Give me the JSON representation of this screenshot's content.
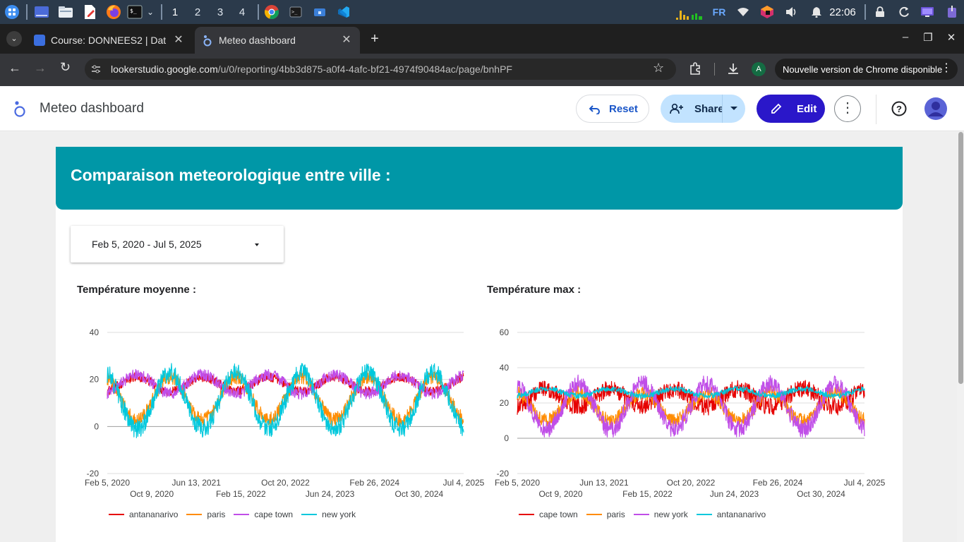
{
  "taskbar": {
    "workspaces": [
      "1",
      "2",
      "3",
      "4"
    ],
    "active_workspace": "1",
    "keyboard_layout": "FR",
    "clock": "22:06",
    "icons": [
      "apps-grid-icon",
      "desktop-icon",
      "file-manager-icon",
      "text-editor-icon",
      "firefox-icon",
      "terminal-icon",
      "chrome-icon",
      "terminal-icon",
      "folder-icon",
      "vscode-icon",
      "network-activity-icon",
      "wifi-icon",
      "app-icon",
      "volume-icon",
      "bell-icon",
      "lock-icon",
      "refresh-icon",
      "display-icon",
      "power-icon"
    ]
  },
  "browser": {
    "tabs": [
      {
        "label": "Course: DONNEES2 | Dat",
        "icon": "course-favicon",
        "active": false
      },
      {
        "label": "Meteo dashboard",
        "icon": "looker-favicon",
        "active": true
      }
    ],
    "url_host": "lookerstudio.google.com",
    "url_path": "/u/0/reporting/4bb3d875-a0f4-4afc-bf21-4974f90484ac/page/bnhPF",
    "profile_initial": "A",
    "update_notice": "Nouvelle version de Chrome disponible"
  },
  "app": {
    "title": "Meteo dashboard",
    "reset_label": "Reset",
    "share_label": "Share",
    "edit_label": "Edit"
  },
  "report": {
    "banner_title": "Comparaison meteorologique entre ville :",
    "date_range": "Feb 5, 2020 - Jul 5, 2025"
  },
  "colors": {
    "teal": "#0097a7",
    "red": "#e60000",
    "orange": "#ff8c00",
    "purple": "#c04ee8",
    "cyan": "#00c8dc",
    "edit_button": "#2a17c9"
  },
  "chart_data": [
    {
      "type": "line",
      "title": "Température moyenne :",
      "x_ticks_top": [
        "Feb 5, 2020",
        "Jun 13, 2021",
        "Oct 20, 2022",
        "Feb 26, 2024",
        "Jul 4, 2025"
      ],
      "x_ticks_bottom": [
        "Oct 9, 2020",
        "Feb 15, 2022",
        "Jun 24, 2023",
        "Oct 30, 2024"
      ],
      "x_range": [
        "2020-02-05",
        "2025-07-04"
      ],
      "y_ticks": [
        40,
        20,
        0,
        -20
      ],
      "ylim": [
        -20,
        40
      ],
      "grid": true,
      "legend_position": "bottom",
      "series": [
        {
          "name": "antananarivo",
          "color": "#e60000",
          "mean": 18,
          "amplitude": 3,
          "noise": 2.0,
          "phase": 0
        },
        {
          "name": "paris",
          "color": "#ff8c00",
          "mean": 12,
          "amplitude": 9,
          "noise": 3.0,
          "phase": 0.5
        },
        {
          "name": "cape town",
          "color": "#c04ee8",
          "mean": 18,
          "amplitude": -4,
          "noise": 2.5,
          "phase": 0.5
        },
        {
          "name": "new york",
          "color": "#00c8dc",
          "mean": 11,
          "amplitude": 12,
          "noise": 4.0,
          "phase": 0.5
        }
      ]
    },
    {
      "type": "line",
      "title": "Température max :",
      "x_ticks_top": [
        "Feb 5, 2020",
        "Jun 13, 2021",
        "Oct 20, 2022",
        "Feb 26, 2024",
        "Jul 4, 2025"
      ],
      "x_ticks_bottom": [
        "Oct 9, 2020",
        "Feb 15, 2022",
        "Jun 24, 2023",
        "Oct 30, 2024"
      ],
      "x_range": [
        "2020-02-05",
        "2025-07-04"
      ],
      "y_ticks": [
        60,
        40,
        20,
        0,
        -20
      ],
      "ylim": [
        -20,
        60
      ],
      "grid": true,
      "legend_position": "bottom",
      "series": [
        {
          "name": "cape town",
          "color": "#e60000",
          "mean": 23,
          "amplitude": -5,
          "noise": 5.0,
          "phase": 0.5
        },
        {
          "name": "paris",
          "color": "#ff8c00",
          "mean": 18,
          "amplitude": 8,
          "noise": 4.0,
          "phase": 0.5
        },
        {
          "name": "new york",
          "color": "#c04ee8",
          "mean": 18,
          "amplitude": 13,
          "noise": 5.0,
          "phase": 0.5
        },
        {
          "name": "antananarivo",
          "color": "#00c8dc",
          "mean": 26,
          "amplitude": 2,
          "noise": 1.5,
          "phase": 0
        }
      ]
    }
  ]
}
